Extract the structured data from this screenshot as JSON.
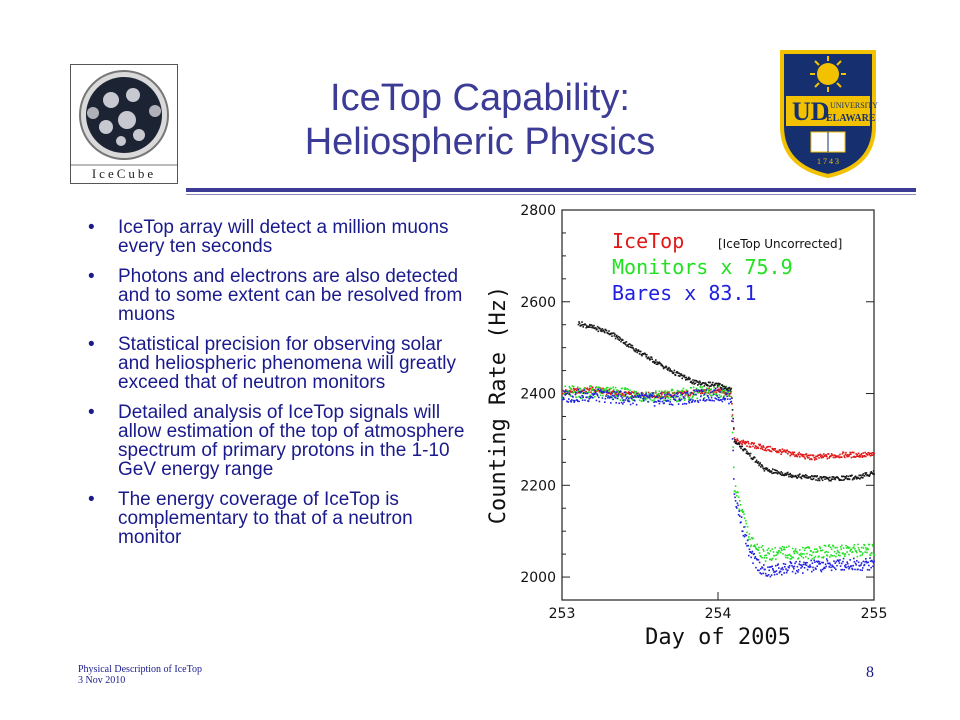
{
  "slide": {
    "title_line1": "IceTop Capability:",
    "title_line2": "Heliospheric Physics",
    "left_logo_text": "IceCube",
    "right_logo_text_top": "UNIVERSITY OF",
    "right_logo_text_bottom": "ELAWARE",
    "right_logo_initials": "UD",
    "right_logo_year": "1 7 4 3",
    "bullets": [
      "IceTop array will detect a million muons every ten seconds",
      "Photons and electrons are also detected and to some extent can be resolved from muons",
      "Statistical precision for observing solar and heliospheric phenomena will greatly exceed that of neutron monitors",
      "Detailed analysis of IceTop signals will allow estimation of the top of atmosphere spectrum of primary protons in the 1-10 GeV energy range",
      "The energy coverage of IceTop is complementary to that of a neutron monitor"
    ],
    "footer_line1": "Physical Description of IceTop",
    "footer_line2": "3 Nov 2010",
    "page_number": "8",
    "accent_color": "#3c3c96",
    "text_color": "#1a1a8c"
  },
  "chart_data": {
    "type": "scatter",
    "xlabel": "Day of 2005",
    "ylabel": "Counting Rate (Hz)",
    "xlim": [
      253,
      255
    ],
    "ylim": [
      1950,
      2800
    ],
    "xticks": [
      "253",
      "254",
      "255"
    ],
    "yticks": [
      "2000",
      "2200",
      "2400",
      "2600",
      "2800"
    ],
    "annotation": "[IceTop Uncorrected]",
    "legend_placement": "top-left",
    "grid": false,
    "series": [
      {
        "name": "IceTop",
        "color": "#e01818",
        "x": [
          253.0,
          253.2,
          253.4,
          253.6,
          253.8,
          254.0,
          254.08,
          254.1,
          254.2,
          254.4,
          254.6,
          254.8,
          255.0
        ],
        "y": [
          2405,
          2410,
          2400,
          2398,
          2402,
          2410,
          2400,
          2300,
          2290,
          2275,
          2262,
          2268,
          2268
        ]
      },
      {
        "name": "Monitors x 75.9",
        "color": "#22e022",
        "x": [
          253.0,
          253.2,
          253.4,
          253.6,
          253.8,
          254.0,
          254.08,
          254.1,
          254.2,
          254.3,
          254.4,
          254.6,
          254.8,
          255.0
        ],
        "y": [
          2405,
          2405,
          2400,
          2395,
          2400,
          2408,
          2400,
          2200,
          2080,
          2050,
          2055,
          2055,
          2060,
          2060
        ]
      },
      {
        "name": "Bares x 83.1",
        "color": "#2020e0",
        "x": [
          253.0,
          253.2,
          253.4,
          253.6,
          253.8,
          254.0,
          254.08,
          254.1,
          254.2,
          254.3,
          254.4,
          254.6,
          254.8,
          255.0
        ],
        "y": [
          2395,
          2398,
          2392,
          2388,
          2393,
          2400,
          2392,
          2180,
          2050,
          2010,
          2020,
          2025,
          2030,
          2030
        ]
      },
      {
        "name": "",
        "color": "#1a1a1a",
        "x": [
          253.1,
          253.3,
          253.5,
          253.7,
          253.85,
          254.0,
          254.08,
          254.1,
          254.3,
          254.5,
          254.7,
          254.9,
          255.0
        ],
        "y": [
          2555,
          2535,
          2490,
          2450,
          2425,
          2420,
          2410,
          2300,
          2235,
          2222,
          2215,
          2220,
          2230
        ]
      }
    ]
  }
}
